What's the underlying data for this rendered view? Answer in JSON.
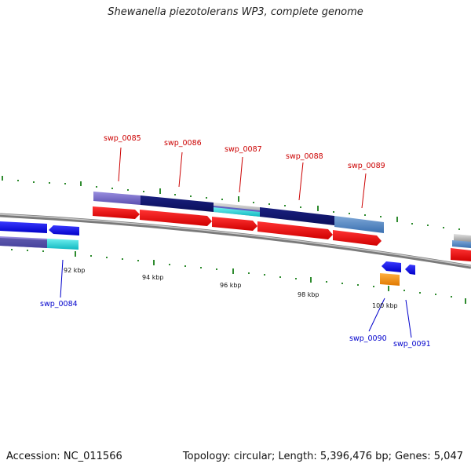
{
  "title": "Shewanella piezotolerans WP3, complete genome",
  "footer": {
    "accession": "Accession: NC_011566",
    "summary": "Topology: circular; Length: 5,396,476 bp; Genes: 5,047"
  },
  "colors": {
    "backbone": "#8a8a8a",
    "tick": "#2e8b2e",
    "forward_label": "#cc0000",
    "reverse_label": "#0000cc",
    "cds": "#ee1111"
  },
  "scale_labels": [
    "92 kbp",
    "94 kbp",
    "96 kbp",
    "98 kbp",
    "100 kbp"
  ],
  "genes_forward": [
    "swp_0085",
    "swp_0086",
    "swp_0087",
    "swp_0088",
    "swp_0089"
  ],
  "genes_reverse": [
    "swp_0084",
    "swp_0090",
    "swp_0091"
  ]
}
